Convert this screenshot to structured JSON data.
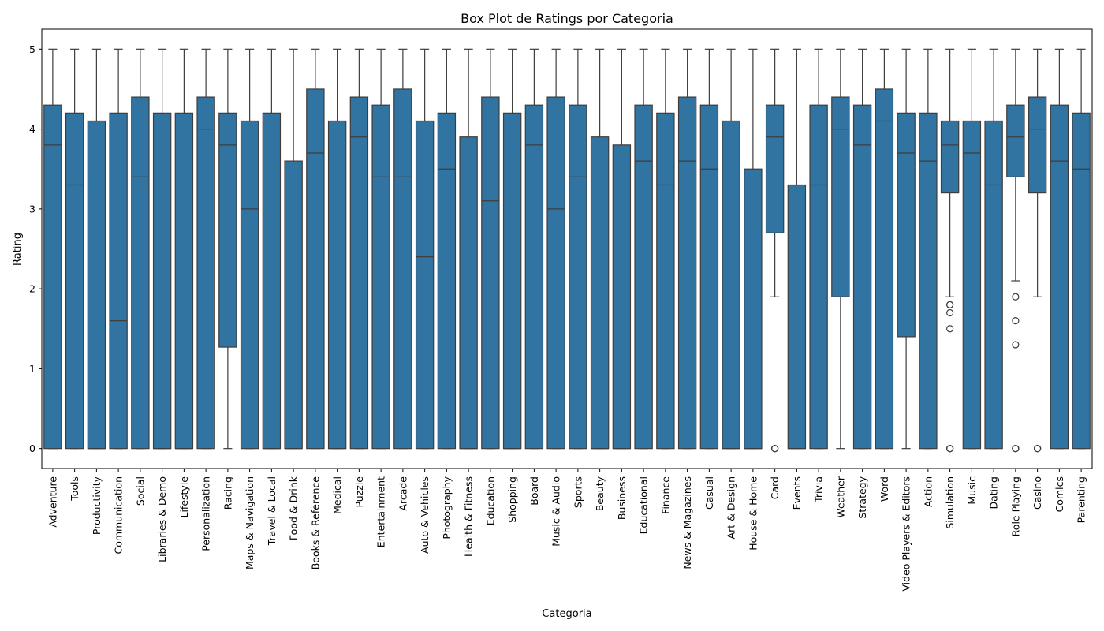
{
  "chart_data": {
    "type": "box",
    "title": "Box Plot de Ratings por Categoria",
    "xlabel": "Categoria",
    "ylabel": "Rating",
    "ylim": [
      -0.25,
      5.25
    ],
    "yticks": [
      0,
      1,
      2,
      3,
      4,
      5
    ],
    "color": "#3274a1",
    "edge_color": "#3d3d3d",
    "categories": [
      {
        "name": "Adventure",
        "min": 0,
        "q1": 0,
        "median": 3.8,
        "q3": 4.3,
        "max": 5,
        "outliers": []
      },
      {
        "name": "Tools",
        "min": 0,
        "q1": 0,
        "median": 3.3,
        "q3": 4.2,
        "max": 5,
        "outliers": []
      },
      {
        "name": "Productivity",
        "min": 0,
        "q1": 0,
        "median": 0,
        "q3": 4.1,
        "max": 5,
        "outliers": []
      },
      {
        "name": "Communication",
        "min": 0,
        "q1": 0,
        "median": 1.6,
        "q3": 4.2,
        "max": 5,
        "outliers": []
      },
      {
        "name": "Social",
        "min": 0,
        "q1": 0,
        "median": 3.4,
        "q3": 4.4,
        "max": 5,
        "outliers": []
      },
      {
        "name": "Libraries & Demo",
        "min": 0,
        "q1": 0,
        "median": 0,
        "q3": 4.2,
        "max": 5,
        "outliers": []
      },
      {
        "name": "Lifestyle",
        "min": 0,
        "q1": 0,
        "median": 0,
        "q3": 4.2,
        "max": 5,
        "outliers": []
      },
      {
        "name": "Personalization",
        "min": 0,
        "q1": 0,
        "median": 4.0,
        "q3": 4.4,
        "max": 5,
        "outliers": []
      },
      {
        "name": "Racing",
        "min": 0,
        "q1": 1.27,
        "median": 3.8,
        "q3": 4.2,
        "max": 5,
        "outliers": []
      },
      {
        "name": "Maps & Navigation",
        "min": 0,
        "q1": 0,
        "median": 3.0,
        "q3": 4.1,
        "max": 5,
        "outliers": []
      },
      {
        "name": "Travel & Local",
        "min": 0,
        "q1": 0,
        "median": 0,
        "q3": 4.2,
        "max": 5,
        "outliers": []
      },
      {
        "name": "Food & Drink",
        "min": 0,
        "q1": 0,
        "median": 0,
        "q3": 3.6,
        "max": 5,
        "outliers": []
      },
      {
        "name": "Books & Reference",
        "min": 0,
        "q1": 0,
        "median": 3.7,
        "q3": 4.5,
        "max": 5,
        "outliers": []
      },
      {
        "name": "Medical",
        "min": 0,
        "q1": 0,
        "median": 0,
        "q3": 4.1,
        "max": 5,
        "outliers": []
      },
      {
        "name": "Puzzle",
        "min": 0,
        "q1": 0,
        "median": 3.9,
        "q3": 4.4,
        "max": 5,
        "outliers": []
      },
      {
        "name": "Entertainment",
        "min": 0,
        "q1": 0,
        "median": 3.4,
        "q3": 4.3,
        "max": 5,
        "outliers": []
      },
      {
        "name": "Arcade",
        "min": 0,
        "q1": 0,
        "median": 3.4,
        "q3": 4.5,
        "max": 5,
        "outliers": []
      },
      {
        "name": "Auto & Vehicles",
        "min": 0,
        "q1": 0,
        "median": 2.4,
        "q3": 4.1,
        "max": 5,
        "outliers": []
      },
      {
        "name": "Photography",
        "min": 0,
        "q1": 0,
        "median": 3.5,
        "q3": 4.2,
        "max": 5,
        "outliers": []
      },
      {
        "name": "Health & Fitness",
        "min": 0,
        "q1": 0,
        "median": 0,
        "q3": 3.9,
        "max": 5,
        "outliers": []
      },
      {
        "name": "Education",
        "min": 0,
        "q1": 0,
        "median": 3.1,
        "q3": 4.4,
        "max": 5,
        "outliers": []
      },
      {
        "name": "Shopping",
        "min": 0,
        "q1": 0,
        "median": 0,
        "q3": 4.2,
        "max": 5,
        "outliers": []
      },
      {
        "name": "Board",
        "min": 0,
        "q1": 0,
        "median": 3.8,
        "q3": 4.3,
        "max": 5,
        "outliers": []
      },
      {
        "name": "Music & Audio",
        "min": 0,
        "q1": 0,
        "median": 3.0,
        "q3": 4.4,
        "max": 5,
        "outliers": []
      },
      {
        "name": "Sports",
        "min": 0,
        "q1": 0,
        "median": 3.4,
        "q3": 4.3,
        "max": 5,
        "outliers": []
      },
      {
        "name": "Beauty",
        "min": 0,
        "q1": 0,
        "median": 0,
        "q3": 3.9,
        "max": 5,
        "outliers": []
      },
      {
        "name": "Business",
        "min": 0,
        "q1": 0,
        "median": 0,
        "q3": 3.8,
        "max": 5,
        "outliers": []
      },
      {
        "name": "Educational",
        "min": 0,
        "q1": 0,
        "median": 3.6,
        "q3": 4.3,
        "max": 5,
        "outliers": []
      },
      {
        "name": "Finance",
        "min": 0,
        "q1": 0,
        "median": 3.3,
        "q3": 4.2,
        "max": 5,
        "outliers": []
      },
      {
        "name": "News & Magazines",
        "min": 0,
        "q1": 0,
        "median": 3.6,
        "q3": 4.4,
        "max": 5,
        "outliers": []
      },
      {
        "name": "Casual",
        "min": 0,
        "q1": 0,
        "median": 3.5,
        "q3": 4.3,
        "max": 5,
        "outliers": []
      },
      {
        "name": "Art & Design",
        "min": 0,
        "q1": 0,
        "median": 0,
        "q3": 4.1,
        "max": 5,
        "outliers": []
      },
      {
        "name": "House & Home",
        "min": 0,
        "q1": 0,
        "median": 0,
        "q3": 3.5,
        "max": 5,
        "outliers": []
      },
      {
        "name": "Card",
        "min": 1.9,
        "q1": 2.7,
        "median": 3.9,
        "q3": 4.3,
        "max": 5,
        "outliers": [
          0,
          0,
          0
        ]
      },
      {
        "name": "Events",
        "min": 0,
        "q1": 0,
        "median": 0,
        "q3": 3.3,
        "max": 5,
        "outliers": []
      },
      {
        "name": "Trivia",
        "min": 0,
        "q1": 0,
        "median": 3.3,
        "q3": 4.3,
        "max": 5,
        "outliers": []
      },
      {
        "name": "Weather",
        "min": 0,
        "q1": 1.9,
        "median": 4.0,
        "q3": 4.4,
        "max": 5,
        "outliers": []
      },
      {
        "name": "Strategy",
        "min": 0,
        "q1": 0,
        "median": 3.8,
        "q3": 4.3,
        "max": 5,
        "outliers": []
      },
      {
        "name": "Word",
        "min": 0,
        "q1": 0,
        "median": 4.1,
        "q3": 4.5,
        "max": 5,
        "outliers": []
      },
      {
        "name": "Video Players & Editors",
        "min": 0,
        "q1": 1.4,
        "median": 3.7,
        "q3": 4.2,
        "max": 5,
        "outliers": []
      },
      {
        "name": "Action",
        "min": 0,
        "q1": 0,
        "median": 3.6,
        "q3": 4.2,
        "max": 5,
        "outliers": []
      },
      {
        "name": "Simulation",
        "min": 1.9,
        "q1": 3.2,
        "median": 3.8,
        "q3": 4.1,
        "max": 5,
        "outliers": [
          1.8,
          1.8,
          1.7,
          1.5,
          0,
          0,
          0
        ]
      },
      {
        "name": "Music",
        "min": 0,
        "q1": 0,
        "median": 3.7,
        "q3": 4.1,
        "max": 5,
        "outliers": []
      },
      {
        "name": "Dating",
        "min": 0,
        "q1": 0,
        "median": 3.3,
        "q3": 4.1,
        "max": 5,
        "outliers": []
      },
      {
        "name": "Role Playing",
        "min": 2.1,
        "q1": 3.4,
        "median": 3.9,
        "q3": 4.3,
        "max": 5,
        "outliers": [
          1.9,
          1.6,
          1.3,
          0,
          0,
          0
        ]
      },
      {
        "name": "Casino",
        "min": 1.9,
        "q1": 3.2,
        "median": 4.0,
        "q3": 4.4,
        "max": 5,
        "outliers": [
          0,
          0,
          0
        ]
      },
      {
        "name": "Comics",
        "min": 0,
        "q1": 0,
        "median": 3.6,
        "q3": 4.3,
        "max": 5,
        "outliers": []
      },
      {
        "name": "Parenting",
        "min": 0,
        "q1": 0,
        "median": 3.5,
        "q3": 4.2,
        "max": 5,
        "outliers": []
      }
    ]
  }
}
